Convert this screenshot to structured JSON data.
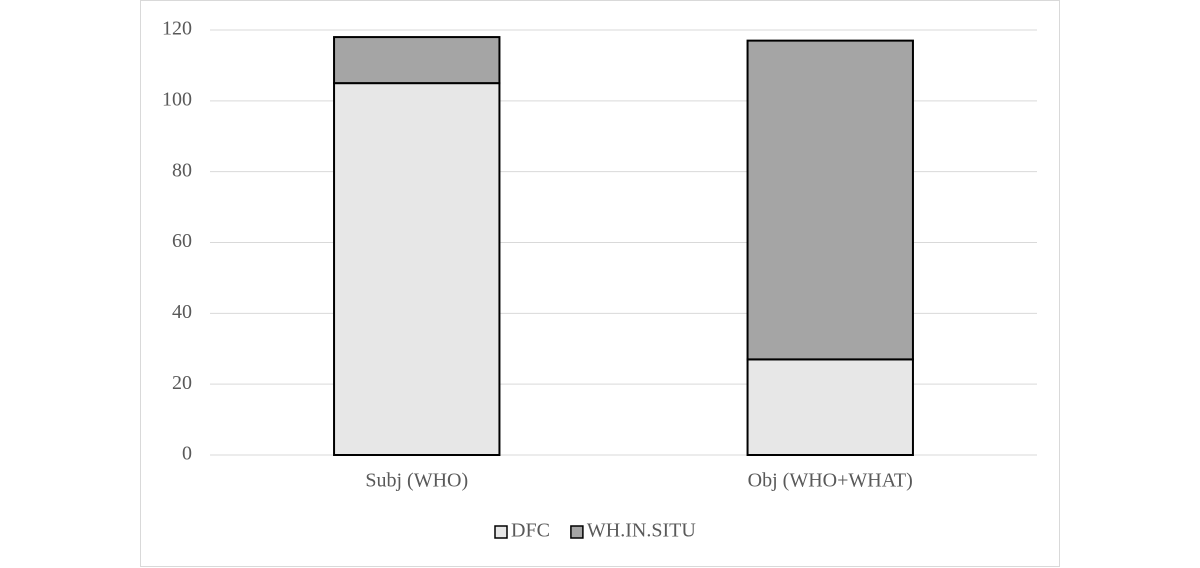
{
  "chart_data": {
    "type": "stacked_bar",
    "categories": [
      "Subj (WHO)",
      "Obj (WHO+WHAT)"
    ],
    "series": [
      {
        "name": "DFC",
        "color": "#e7e7e7",
        "values": [
          105,
          27
        ]
      },
      {
        "name": "WH.IN.SITU",
        "color": "#a5a5a5",
        "values": [
          13,
          90
        ]
      }
    ],
    "ylim": [
      0,
      120
    ],
    "yticks": [
      0,
      20,
      40,
      60,
      80,
      100,
      120
    ],
    "grid": true,
    "legend": "bottom"
  }
}
